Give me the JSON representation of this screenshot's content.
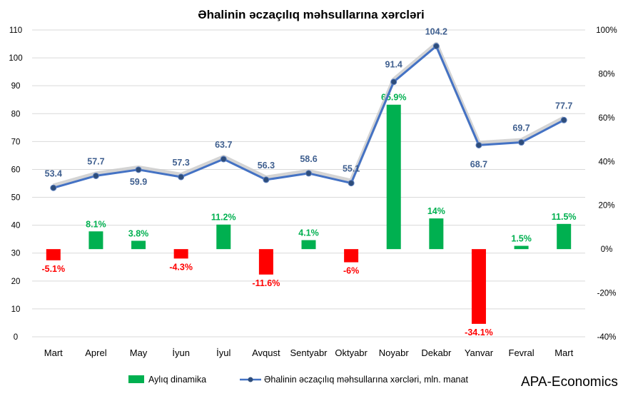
{
  "chart_data": {
    "type": "bar+line",
    "title": "Əhalinin əczaçılıq məhsullarına xərcləri",
    "categories": [
      "Mart",
      "Aprel",
      "May",
      "İyun",
      "İyul",
      "Avqust",
      "Sentyabr",
      "Oktyabr",
      "Noyabr",
      "Dekabr",
      "Yanvar",
      "Fevral",
      "Mart"
    ],
    "bar_series": {
      "name": "Aylıq dinamika",
      "values": [
        -5.1,
        8.1,
        3.8,
        -4.3,
        11.2,
        -11.6,
        4.1,
        -6,
        65.9,
        14,
        -34.1,
        1.5,
        11.5
      ],
      "labels": [
        "-5.1%",
        "8.1%",
        "3.8%",
        "-4.3%",
        "11.2%",
        "-11.6%",
        "4.1%",
        "-6%",
        "65.9%",
        "14%",
        "-34.1%",
        "1.5%",
        "11.5%"
      ],
      "axis": "right",
      "positive_color": "#00b050",
      "negative_color": "#ff0000"
    },
    "line_series": {
      "name": "Əhalinin əczaçılıq məhsullarına xərcləri, mln. manat",
      "values": [
        53.4,
        57.7,
        59.9,
        57.3,
        63.7,
        56.3,
        58.6,
        55.1,
        91.4,
        104.2,
        68.7,
        69.7,
        77.7
      ],
      "labels": [
        "53.4",
        "57.7",
        "59.9",
        "57.3",
        "63.7",
        "56.3",
        "58.6",
        "55.1",
        "91.4",
        "104.2",
        "68.7",
        "69.7",
        "77.7"
      ],
      "axis": "left",
      "color": "#4472c4"
    },
    "left_axis": {
      "min": 0,
      "max": 110,
      "ticks": [
        "0",
        "10",
        "20",
        "30",
        "40",
        "50",
        "60",
        "70",
        "80",
        "90",
        "100",
        "110"
      ]
    },
    "right_axis": {
      "min": -40,
      "max": 100,
      "ticks": [
        "-40%",
        "-20%",
        "0%",
        "20%",
        "40%",
        "60%",
        "80%",
        "100%"
      ]
    },
    "grid": true,
    "legend_position": "bottom",
    "source_label": "APA-Economics"
  }
}
